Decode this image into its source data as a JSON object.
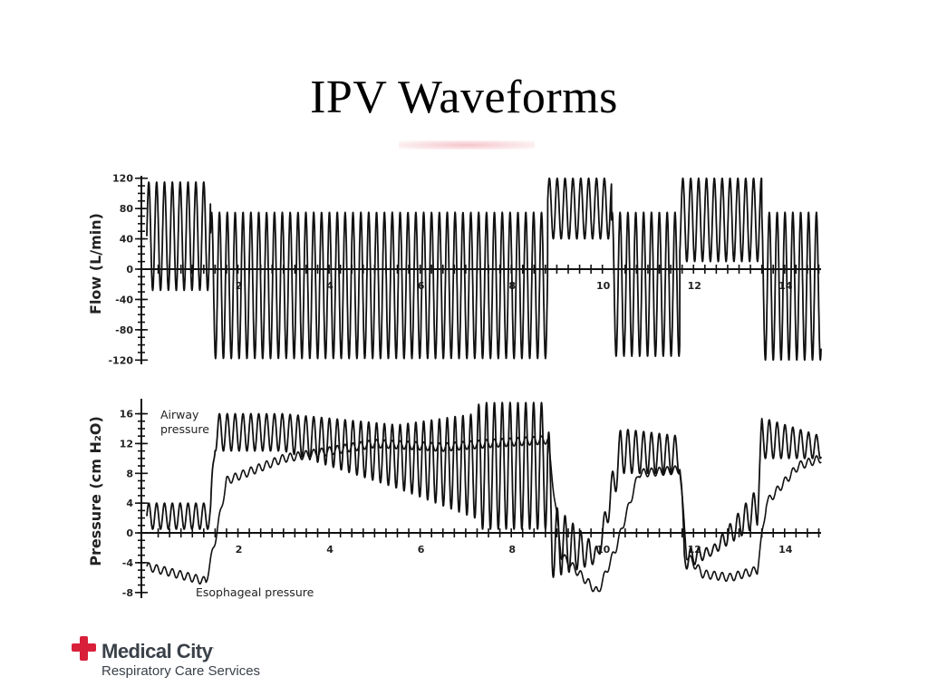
{
  "slide": {
    "title": "IPV Waveforms"
  },
  "logo": {
    "name": "Medical City",
    "trademark": "·",
    "subtitle": "Respiratory Care Services",
    "brand_color": "#d8203a",
    "text_color": "#3a4149"
  },
  "chart_data": [
    {
      "type": "line",
      "title": "",
      "ylabel": "Flow (L/min)",
      "xlabel": "",
      "xlim": [
        0,
        14.8
      ],
      "ylim": [
        -128,
        128
      ],
      "x_ticklabels": [
        "2",
        "4",
        "6",
        "8",
        "10",
        "12",
        "14"
      ],
      "y_ticklabels": [
        "120",
        "80",
        "40",
        "0",
        "-40",
        "-80",
        "-120"
      ],
      "y_tickvalues": [
        120,
        80,
        40,
        0,
        -40,
        -80,
        -120
      ],
      "grid": false,
      "series": [
        {
          "name": "",
          "oscillation_hz": 5.8,
          "segments": [
            {
              "x": [
                0.0,
                1.4
              ],
              "peak": 115,
              "trough": -28
            },
            {
              "x": [
                1.4,
                8.8
              ],
              "peak": 75,
              "trough": -118
            },
            {
              "x": [
                8.8,
                10.2
              ],
              "peak": 120,
              "trough": 40
            },
            {
              "x": [
                10.2,
                11.7
              ],
              "peak": 75,
              "trough": -115
            },
            {
              "x": [
                11.7,
                13.5
              ],
              "peak": 120,
              "trough": 10
            },
            {
              "x": [
                13.5,
                14.8
              ],
              "peak": 75,
              "trough": -120
            }
          ]
        }
      ]
    },
    {
      "type": "line",
      "title": "",
      "ylabel": "Pressure (cm H₂O)",
      "xlabel": "",
      "xlim": [
        0,
        14.8
      ],
      "ylim": [
        -9,
        18.5
      ],
      "x_ticklabels": [
        "2",
        "4",
        "6",
        "8",
        "10",
        "12",
        "14"
      ],
      "y_ticklabels": [
        "16",
        "12",
        "8",
        "4",
        "0",
        "-4",
        "-8"
      ],
      "y_tickvalues": [
        16,
        12,
        8,
        4,
        0,
        -4,
        -8
      ],
      "grid": false,
      "annotations": [
        "Airway\npressure",
        "Esophageal pressure"
      ],
      "series": [
        {
          "name": "Airway pressure",
          "x": [
            0.0,
            1.4,
            1.5,
            3.0,
            5.5,
            7.2,
            7.3,
            8.8,
            8.9,
            9.9,
            10.4,
            11.7,
            11.8,
            12.4,
            13.4,
            13.5,
            14.8
          ],
          "upper": [
            4,
            4,
            16,
            16,
            14.5,
            16,
            17.5,
            17.5,
            4,
            -2,
            14,
            13,
            -2,
            -2,
            6,
            15.5,
            13
          ],
          "lower": [
            0.5,
            0.5,
            11,
            11,
            6,
            2,
            0.5,
            0.5,
            -6,
            -4,
            8,
            8,
            -5,
            -3,
            1,
            10,
            10
          ]
        },
        {
          "name": "Esophageal pressure",
          "x": [
            0.0,
            1.3,
            1.5,
            1.75,
            3.0,
            5.0,
            6.5,
            7.5,
            8.8,
            9.1,
            9.9,
            10.3,
            10.8,
            11.7,
            11.85,
            12.2,
            12.8,
            13.4,
            13.6,
            14.3,
            14.8
          ],
          "y": [
            -4.5,
            -6.5,
            -1,
            7,
            10,
            12,
            11.5,
            12,
            12.5,
            -3,
            -8,
            -2,
            8,
            8.5,
            -3,
            -5.5,
            -6,
            -5,
            4,
            9,
            10
          ]
        }
      ]
    }
  ]
}
